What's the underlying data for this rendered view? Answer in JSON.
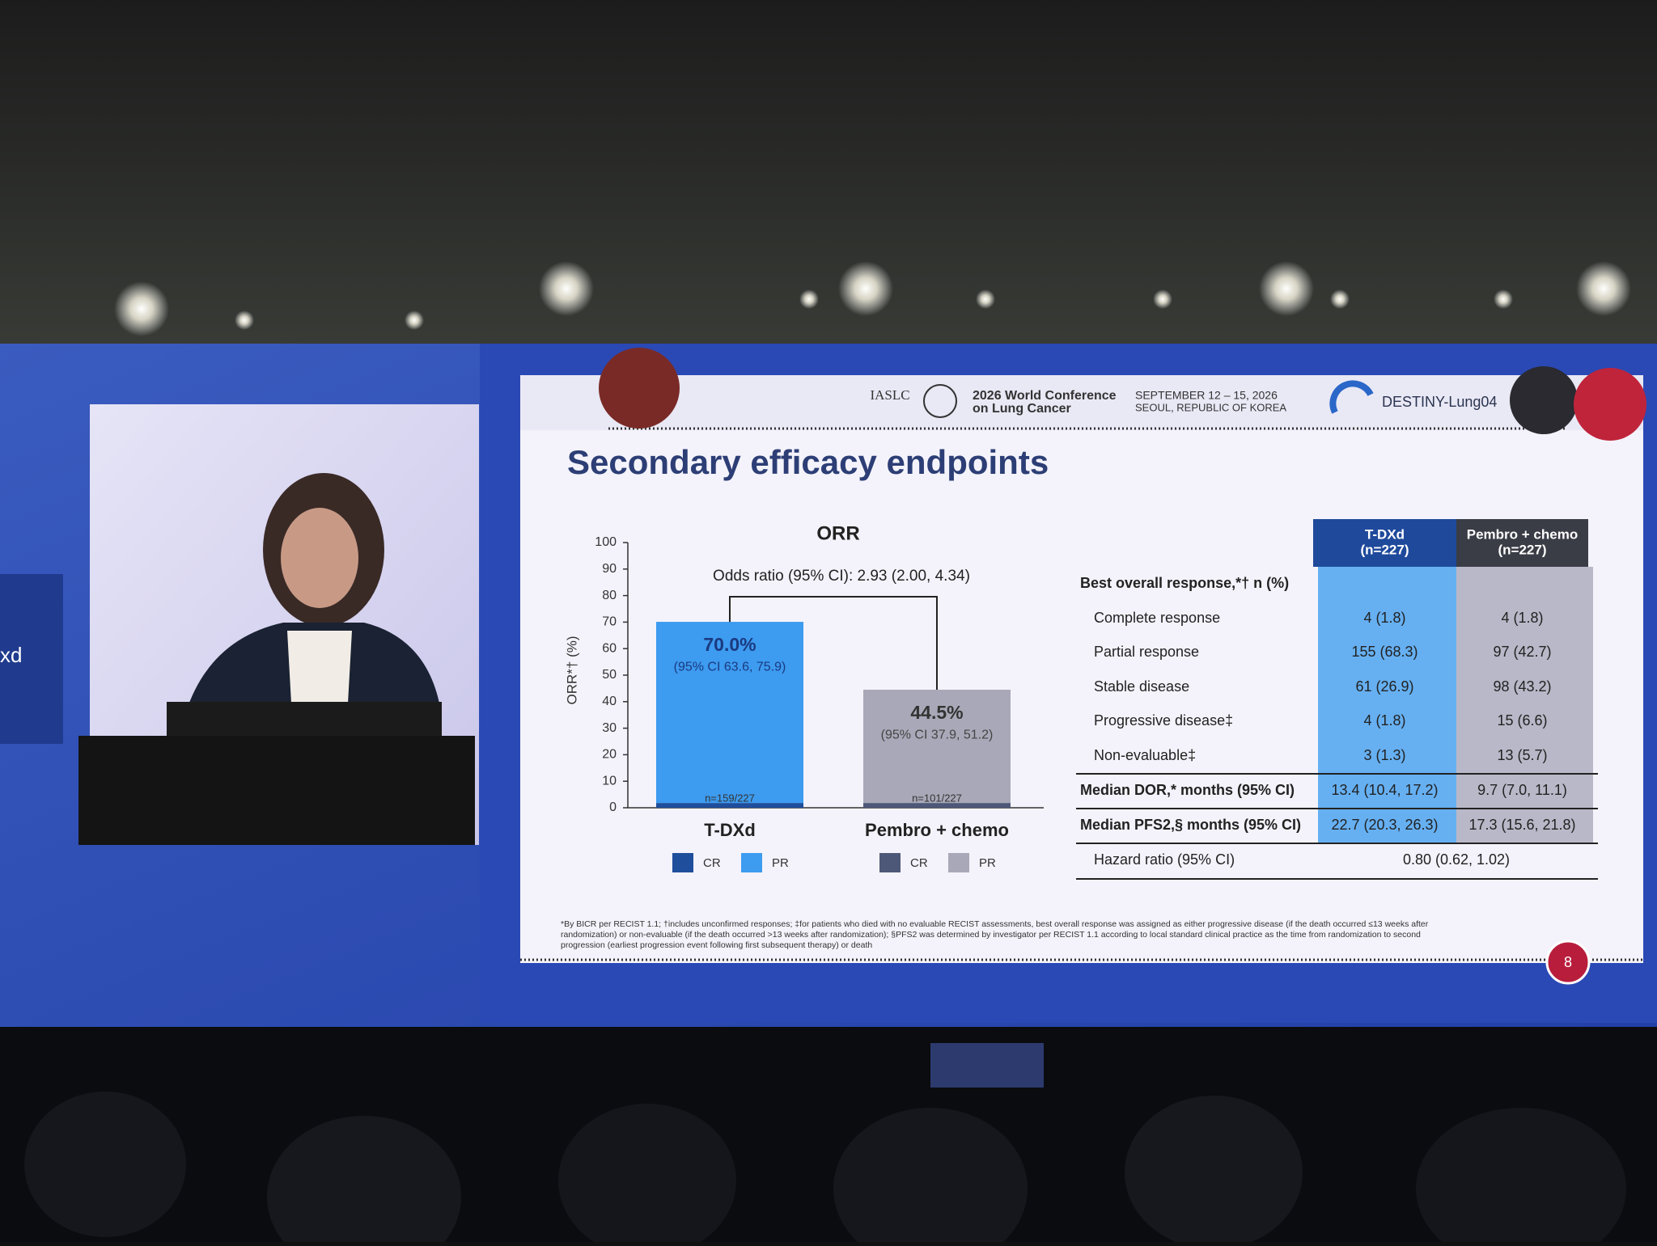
{
  "left_screen_text": "xd",
  "header": {
    "society": "IASLC",
    "conference": [
      "2026 World Conference",
      "on Lung Cancer"
    ],
    "dates": [
      "SEPTEMBER 12 – 15, 2026",
      "SEOUL, REPUBLIC OF KOREA"
    ],
    "trial": "DESTINY-Lung04"
  },
  "slide": {
    "title": "Secondary efficacy endpoints",
    "page_number": 8,
    "footnote": [
      "*By BICR per RECIST 1.1; †includes unconfirmed responses; ‡for patients who died with no evaluable RECIST assessments, best overall response was assigned as either progressive disease (if the death occurred ≤13 weeks after",
      "randomization) or non-evaluable (if the death occurred >13 weeks after randomization); §PFS2 was determined by investigator per RECIST 1.1 according to local standard clinical practice as the time from randomization to second",
      "progression (earliest progression event following first subsequent therapy) or death"
    ]
  },
  "chart_data": {
    "type": "stacked_bar",
    "title": "ORR",
    "y_label": "ORR*† (%)",
    "annotation": "Odds ratio (95% CI): 2.93 (2.00, 4.34)",
    "categories": [
      "T-DXd",
      "Pembro + chemo"
    ],
    "series": [
      {
        "name": "CR",
        "colors": [
          "#1f4e9c",
          "#4d5878"
        ],
        "values": [
          1.8,
          1.8
        ]
      },
      {
        "name": "PR",
        "colors": [
          "#3d9bf0",
          "#a8a8b8"
        ],
        "values": [
          68.3,
          42.7
        ]
      }
    ],
    "total_labels": [
      "70.0%",
      "44.5%"
    ],
    "ci_labels": [
      "(95% CI 63.6, 75.9)",
      "(95% CI 37.9, 51.2)"
    ],
    "n_labels": [
      "n=159/227",
      "n=101/227"
    ],
    "ylim": [
      0,
      100
    ],
    "yticks": [
      0,
      10,
      20,
      30,
      40,
      50,
      60,
      70,
      80,
      90,
      100
    ]
  },
  "table": {
    "columns": [
      [
        "T-DXd",
        "(n=227)"
      ],
      [
        "Pembro + chemo",
        "(n=227)"
      ]
    ],
    "rows": [
      [
        "Best overall response,*† n (%)"
      ],
      [
        "Complete response",
        "4 (1.8)",
        "4 (1.8)"
      ],
      [
        "Partial response",
        "155 (68.3)",
        "97 (42.7)"
      ],
      [
        "Stable disease",
        "61 (26.9)",
        "98 (43.2)"
      ],
      [
        "Progressive disease‡",
        "4 (1.8)",
        "15 (6.6)"
      ],
      [
        "Non-evaluable‡",
        "3 (1.3)",
        "13 (5.7)"
      ],
      [
        "Median DOR,* months (95% CI)",
        "13.4 (10.4, 17.2)",
        "9.7 (7.0, 11.1)"
      ],
      [
        "Median PFS2,§ months (95% CI)",
        "22.7 (20.3, 26.3)",
        "17.3 (15.6, 21.8)"
      ],
      [
        "Hazard ratio (95% CI)",
        "0.80 (0.62, 1.02)"
      ]
    ]
  }
}
